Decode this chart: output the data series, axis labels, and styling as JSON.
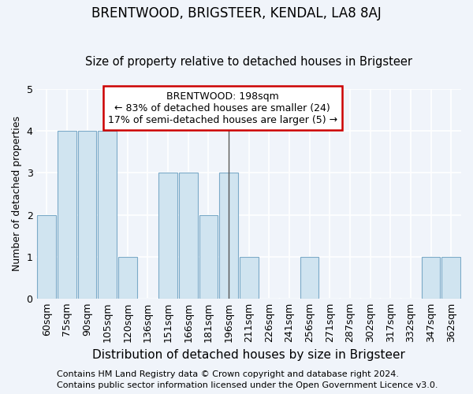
{
  "title": "BRENTWOOD, BRIGSTEER, KENDAL, LA8 8AJ",
  "subtitle": "Size of property relative to detached houses in Brigsteer",
  "xlabel": "Distribution of detached houses by size in Brigsteer",
  "ylabel": "Number of detached properties",
  "footer_line1": "Contains HM Land Registry data © Crown copyright and database right 2024.",
  "footer_line2": "Contains public sector information licensed under the Open Government Licence v3.0.",
  "categories": [
    "60sqm",
    "75sqm",
    "90sqm",
    "105sqm",
    "120sqm",
    "136sqm",
    "151sqm",
    "166sqm",
    "181sqm",
    "196sqm",
    "211sqm",
    "226sqm",
    "241sqm",
    "256sqm",
    "271sqm",
    "287sqm",
    "302sqm",
    "317sqm",
    "332sqm",
    "347sqm",
    "362sqm"
  ],
  "values": [
    2,
    4,
    4,
    4,
    1,
    0,
    3,
    3,
    2,
    3,
    1,
    0,
    0,
    1,
    0,
    0,
    0,
    0,
    0,
    1,
    1
  ],
  "highlight_index": 9,
  "bar_color": "#d0e4f0",
  "bar_edge_color": "#7baac8",
  "vline_color": "#555555",
  "annotation_text": "BRENTWOOD: 198sqm\n← 83% of detached houses are smaller (24)\n17% of semi-detached houses are larger (5) →",
  "annotation_box_color": "#ffffff",
  "annotation_box_edge_color": "#cc0000",
  "ylim": [
    0,
    5
  ],
  "yticks": [
    0,
    1,
    2,
    3,
    4,
    5
  ],
  "background_color": "#f0f4fa",
  "plot_background_color": "#f0f4fa",
  "grid_color": "#ffffff",
  "title_fontsize": 12,
  "subtitle_fontsize": 10.5,
  "xlabel_fontsize": 11,
  "ylabel_fontsize": 9,
  "tick_fontsize": 9,
  "annotation_fontsize": 9,
  "footer_fontsize": 8
}
